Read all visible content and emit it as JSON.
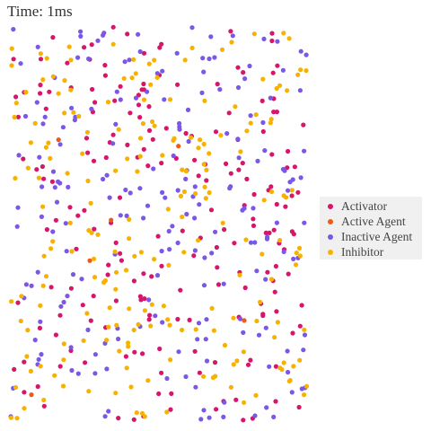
{
  "title": "Time: 1ms",
  "colors": {
    "activator": "#d6156b",
    "active_agent": "#ee5a17",
    "inactive_agent": "#7a57e6",
    "inhibitor": "#f7b200"
  },
  "legend": [
    {
      "label": "Activator",
      "color_key": "activator"
    },
    {
      "label": "Active Agent",
      "color_key": "active_agent"
    },
    {
      "label": "Inactive Agent",
      "color_key": "inactive_agent"
    },
    {
      "label": "Inhibitor",
      "color_key": "inhibitor"
    }
  ],
  "chart_data": {
    "type": "scatter",
    "title": "Time: 1ms",
    "grid": false,
    "legend_position": "right",
    "series": [
      {
        "name": "Activator",
        "color_key": "activator",
        "count": 200
      },
      {
        "name": "Active Agent",
        "color_key": "active_agent",
        "count": 6
      },
      {
        "name": "Inactive Agent",
        "color_key": "inactive_agent",
        "count": 200
      },
      {
        "name": "Inhibitor",
        "color_key": "inhibitor",
        "count": 210
      }
    ]
  }
}
